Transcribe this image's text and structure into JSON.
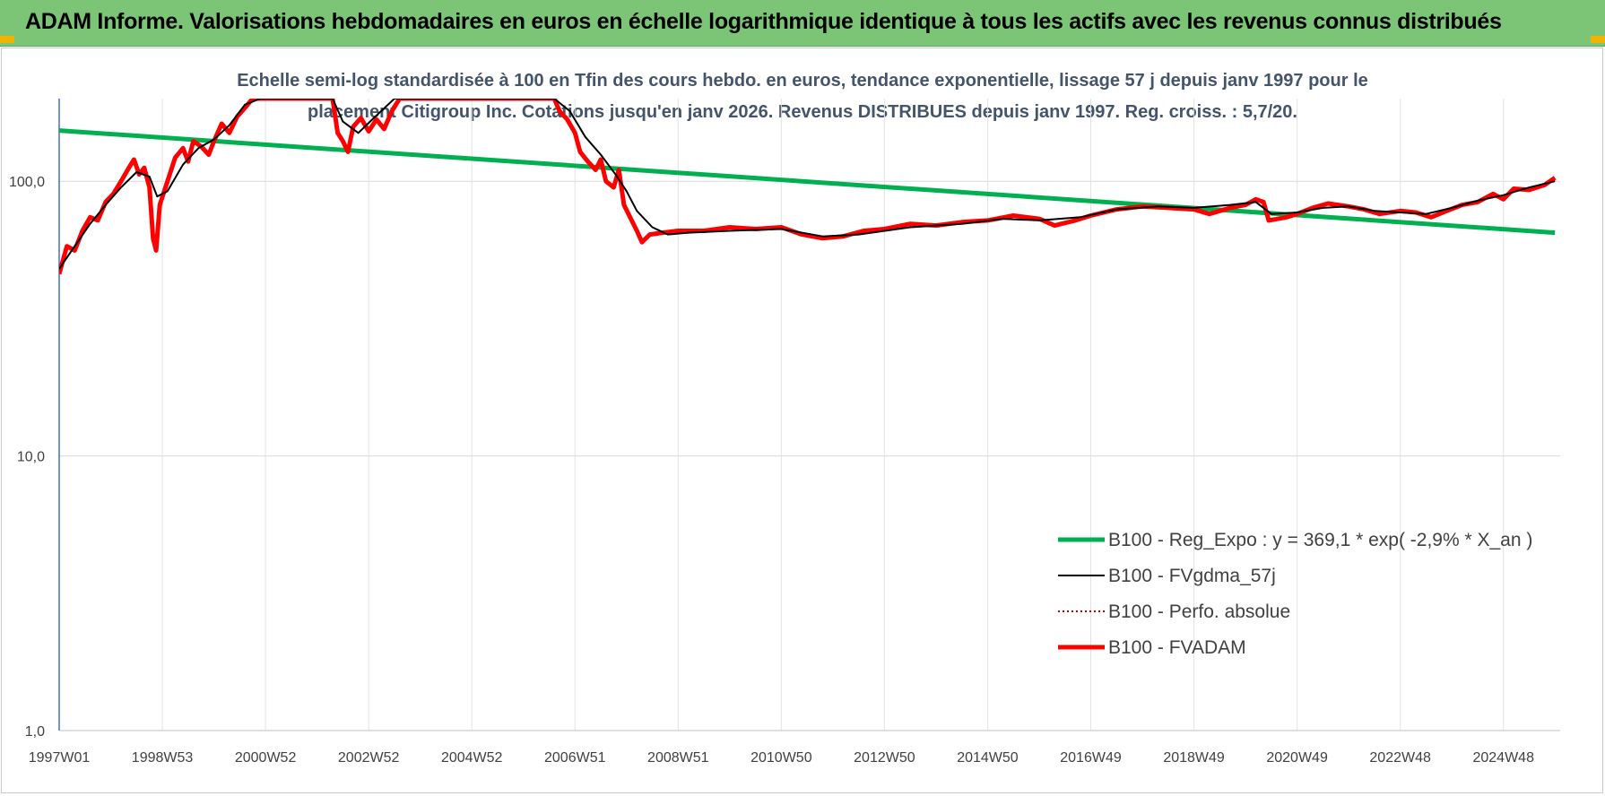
{
  "banner": {
    "title": "ADAM Informe. Valorisations hebdomadaires en euros en échelle logarithmique identique à tous les actifs avec les revenus connus distribués",
    "color": "#7cc576"
  },
  "chart_data": {
    "type": "line",
    "title": "Echelle semi-log standardisée à 100 en Tfin des cours hebdo. en euros, tendance exponentielle, lissage 57 j depuis janv 1997 pour le placement Citigroup Inc. Cotations jusqu'en janv 2026. Revenus DISTRIBUES depuis janv 1997. Reg. croiss. : 5,7/20.",
    "title_lines": [
      "Echelle semi-log standardisée à 100 en Tfin des cours hebdo. en euros, tendance exponentielle, lissage 57 j depuis janv 1997 pour le",
      "placement Citigroup Inc. Cotations jusqu'en janv 2026. Revenus DISTRIBUES depuis janv 1997. Reg. croiss. : 5,7/20."
    ],
    "y_scale": "log",
    "ylim": [
      1,
      200
    ],
    "xlim": [
      1997.0,
      2026.1
    ],
    "y_ticks": [
      {
        "value": 1,
        "label": "1,0"
      },
      {
        "value": 10,
        "label": "10,0"
      },
      {
        "value": 100,
        "label": "100,0"
      }
    ],
    "x_ticks": [
      {
        "value": 1997.0,
        "label": "1997W01"
      },
      {
        "value": 1999.0,
        "label": "1998W53"
      },
      {
        "value": 2001.0,
        "label": "2000W52"
      },
      {
        "value": 2003.0,
        "label": "2002W52"
      },
      {
        "value": 2005.0,
        "label": "2004W52"
      },
      {
        "value": 2007.0,
        "label": "2006W51"
      },
      {
        "value": 2009.0,
        "label": "2008W51"
      },
      {
        "value": 2011.0,
        "label": "2010W50"
      },
      {
        "value": 2013.0,
        "label": "2012W50"
      },
      {
        "value": 2015.0,
        "label": "2014W50"
      },
      {
        "value": 2017.0,
        "label": "2016W49"
      },
      {
        "value": 2019.0,
        "label": "2018W49"
      },
      {
        "value": 2021.0,
        "label": "2020W49"
      },
      {
        "value": 2023.0,
        "label": "2022W48"
      },
      {
        "value": 2025.0,
        "label": "2024W48"
      }
    ],
    "grid": true,
    "legend_position": "bottom-right",
    "series": [
      {
        "name": "B100 - Reg_Expo : y = 369,1 * exp( -2,9% *  X_an )",
        "color": "#00b050",
        "style": "solid-thick",
        "points": [
          [
            1997.0,
            153
          ],
          [
            2026.0,
            65
          ]
        ]
      },
      {
        "name": "B100 - FVgdma_57j",
        "color": "#000000",
        "style": "solid",
        "points": [
          [
            1997.0,
            48
          ],
          [
            1997.3,
            58
          ],
          [
            1997.6,
            70
          ],
          [
            1997.9,
            82
          ],
          [
            1998.2,
            95
          ],
          [
            1998.5,
            108
          ],
          [
            1998.75,
            104
          ],
          [
            1998.9,
            88
          ],
          [
            1999.1,
            92
          ],
          [
            1999.4,
            115
          ],
          [
            1999.7,
            132
          ],
          [
            2000.0,
            142
          ],
          [
            2000.3,
            160
          ],
          [
            2000.6,
            190
          ],
          [
            2000.9,
            200
          ],
          [
            2002.3,
            200
          ],
          [
            2002.5,
            165
          ],
          [
            2002.8,
            150
          ],
          [
            2003.1,
            170
          ],
          [
            2003.5,
            200
          ],
          [
            2006.6,
            200
          ],
          [
            2006.9,
            180
          ],
          [
            2007.2,
            145
          ],
          [
            2007.5,
            125
          ],
          [
            2007.8,
            105
          ],
          [
            2008.0,
            92
          ],
          [
            2008.2,
            78
          ],
          [
            2008.5,
            68
          ],
          [
            2008.8,
            64
          ],
          [
            2009.2,
            65
          ],
          [
            2010.0,
            66
          ],
          [
            2011.0,
            67
          ],
          [
            2011.8,
            63
          ],
          [
            2012.5,
            64
          ],
          [
            2013.5,
            68
          ],
          [
            2014.5,
            70
          ],
          [
            2015.3,
            73
          ],
          [
            2016.0,
            72
          ],
          [
            2016.8,
            74
          ],
          [
            2017.5,
            79
          ],
          [
            2018.3,
            81
          ],
          [
            2019.0,
            80
          ],
          [
            2019.7,
            82
          ],
          [
            2020.2,
            84
          ],
          [
            2020.5,
            76
          ],
          [
            2021.0,
            77
          ],
          [
            2021.5,
            80
          ],
          [
            2022.0,
            81
          ],
          [
            2022.5,
            78
          ],
          [
            2023.0,
            77
          ],
          [
            2023.5,
            76
          ],
          [
            2024.0,
            80
          ],
          [
            2024.5,
            85
          ],
          [
            2025.0,
            89
          ],
          [
            2025.5,
            95
          ],
          [
            2026.0,
            100
          ]
        ]
      },
      {
        "name": "B100 - Perfo. absolue",
        "color": "#c00000",
        "style": "dotted",
        "points": []
      },
      {
        "name": "B100 - FVADAM",
        "color": "#ff0000",
        "style": "solid-thick",
        "points": [
          [
            1997.0,
            46
          ],
          [
            1997.15,
            58
          ],
          [
            1997.3,
            56
          ],
          [
            1997.45,
            66
          ],
          [
            1997.6,
            74
          ],
          [
            1997.75,
            72
          ],
          [
            1997.9,
            84
          ],
          [
            1998.05,
            90
          ],
          [
            1998.2,
            100
          ],
          [
            1998.35,
            112
          ],
          [
            1998.45,
            120
          ],
          [
            1998.55,
            106
          ],
          [
            1998.65,
            112
          ],
          [
            1998.75,
            95
          ],
          [
            1998.82,
            62
          ],
          [
            1998.88,
            56
          ],
          [
            1998.95,
            82
          ],
          [
            1999.1,
            100
          ],
          [
            1999.25,
            122
          ],
          [
            1999.4,
            132
          ],
          [
            1999.5,
            118
          ],
          [
            1999.6,
            140
          ],
          [
            1999.75,
            134
          ],
          [
            1999.9,
            125
          ],
          [
            2000.0,
            140
          ],
          [
            2000.15,
            162
          ],
          [
            2000.3,
            150
          ],
          [
            2000.45,
            172
          ],
          [
            2000.6,
            185
          ],
          [
            2000.75,
            200
          ],
          [
            2002.3,
            200
          ],
          [
            2002.4,
            150
          ],
          [
            2002.5,
            140
          ],
          [
            2002.6,
            128
          ],
          [
            2002.7,
            158
          ],
          [
            2002.85,
            170
          ],
          [
            2003.0,
            152
          ],
          [
            2003.15,
            168
          ],
          [
            2003.3,
            155
          ],
          [
            2003.45,
            180
          ],
          [
            2003.6,
            200
          ],
          [
            2006.6,
            200
          ],
          [
            2006.7,
            180
          ],
          [
            2006.85,
            168
          ],
          [
            2007.0,
            150
          ],
          [
            2007.1,
            128
          ],
          [
            2007.25,
            118
          ],
          [
            2007.4,
            110
          ],
          [
            2007.5,
            120
          ],
          [
            2007.6,
            100
          ],
          [
            2007.75,
            95
          ],
          [
            2007.85,
            110
          ],
          [
            2007.95,
            82
          ],
          [
            2008.1,
            72
          ],
          [
            2008.2,
            66
          ],
          [
            2008.3,
            60
          ],
          [
            2008.45,
            64
          ],
          [
            2008.7,
            65
          ],
          [
            2009.0,
            66
          ],
          [
            2009.5,
            66
          ],
          [
            2010.0,
            68
          ],
          [
            2010.5,
            67
          ],
          [
            2011.0,
            68
          ],
          [
            2011.4,
            64
          ],
          [
            2011.8,
            62
          ],
          [
            2012.2,
            63
          ],
          [
            2012.6,
            66
          ],
          [
            2013.0,
            67
          ],
          [
            2013.5,
            70
          ],
          [
            2014.0,
            69
          ],
          [
            2014.5,
            71
          ],
          [
            2015.0,
            72
          ],
          [
            2015.5,
            75
          ],
          [
            2016.0,
            73
          ],
          [
            2016.3,
            69
          ],
          [
            2016.7,
            72
          ],
          [
            2017.0,
            75
          ],
          [
            2017.5,
            79
          ],
          [
            2018.0,
            81
          ],
          [
            2018.5,
            80
          ],
          [
            2019.0,
            79
          ],
          [
            2019.3,
            76
          ],
          [
            2019.7,
            80
          ],
          [
            2020.0,
            82
          ],
          [
            2020.2,
            86
          ],
          [
            2020.35,
            84
          ],
          [
            2020.45,
            72
          ],
          [
            2020.8,
            74
          ],
          [
            2021.0,
            76
          ],
          [
            2021.3,
            80
          ],
          [
            2021.6,
            83
          ],
          [
            2022.0,
            81
          ],
          [
            2022.3,
            79
          ],
          [
            2022.6,
            76
          ],
          [
            2023.0,
            78
          ],
          [
            2023.3,
            77
          ],
          [
            2023.6,
            74
          ],
          [
            2023.9,
            78
          ],
          [
            2024.2,
            82
          ],
          [
            2024.5,
            84
          ],
          [
            2024.8,
            90
          ],
          [
            2025.0,
            86
          ],
          [
            2025.2,
            94
          ],
          [
            2025.5,
            93
          ],
          [
            2025.8,
            97
          ],
          [
            2026.0,
            103
          ]
        ]
      }
    ]
  }
}
